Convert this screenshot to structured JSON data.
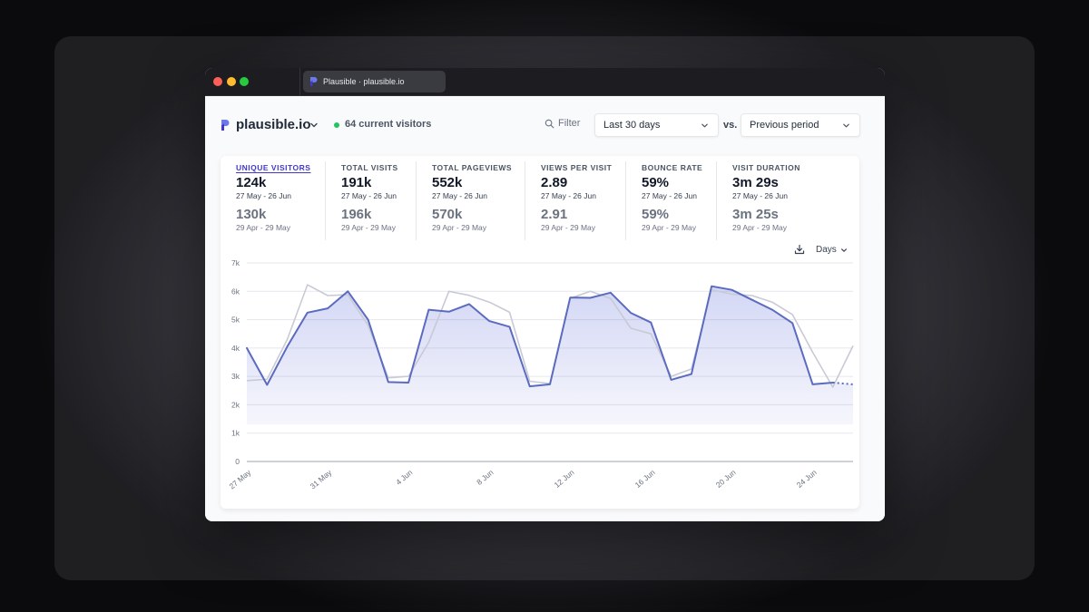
{
  "tab": {
    "title": "Plausible · plausible.io"
  },
  "header": {
    "site_name": "plausible.io",
    "current_visitors": "64 current visitors",
    "filter_label": "Filter",
    "period": "Last 30 days",
    "vs_label": "vs.",
    "comparison": "Previous period"
  },
  "metrics": [
    {
      "label": "UNIQUE VISITORS",
      "value": "124k",
      "range": "27 May - 26 Jun",
      "prev_value": "130k",
      "prev_range": "29 Apr - 29 May"
    },
    {
      "label": "TOTAL VISITS",
      "value": "191k",
      "range": "27 May - 26 Jun",
      "prev_value": "196k",
      "prev_range": "29 Apr - 29 May"
    },
    {
      "label": "TOTAL PAGEVIEWS",
      "value": "552k",
      "range": "27 May - 26 Jun",
      "prev_value": "570k",
      "prev_range": "29 Apr - 29 May"
    },
    {
      "label": "VIEWS PER VISIT",
      "value": "2.89",
      "range": "27 May - 26 Jun",
      "prev_value": "2.91",
      "prev_range": "29 Apr - 29 May"
    },
    {
      "label": "BOUNCE RATE",
      "value": "59%",
      "range": "27 May - 26 Jun",
      "prev_value": "59%",
      "prev_range": "29 Apr - 29 May"
    },
    {
      "label": "VISIT DURATION",
      "value": "3m 29s",
      "range": "27 May - 26 Jun",
      "prev_value": "3m 25s",
      "prev_range": "29 Apr - 29 May"
    }
  ],
  "chart_controls": {
    "interval": "Days"
  },
  "colors": {
    "primary": "#5b6bbf",
    "comparison": "#c8cad6",
    "live": "#22c55e",
    "brand": "#5850ec"
  },
  "chart_data": {
    "type": "area",
    "x": [
      "27 May",
      "28 May",
      "29 May",
      "30 May",
      "31 May",
      "1 Jun",
      "2 Jun",
      "3 Jun",
      "4 Jun",
      "5 Jun",
      "6 Jun",
      "7 Jun",
      "8 Jun",
      "9 Jun",
      "10 Jun",
      "11 Jun",
      "12 Jun",
      "13 Jun",
      "14 Jun",
      "15 Jun",
      "16 Jun",
      "17 Jun",
      "18 Jun",
      "19 Jun",
      "20 Jun",
      "21 Jun",
      "22 Jun",
      "23 Jun",
      "24 Jun",
      "25 Jun",
      "26 Jun"
    ],
    "tick_labels": [
      "27 May",
      "31 May",
      "4 Jun",
      "8 Jun",
      "12 Jun",
      "16 Jun",
      "20 Jun",
      "24 Jun"
    ],
    "y_ticks": [
      "0",
      "1k",
      "2k",
      "3k",
      "4k",
      "5k",
      "6k",
      "7k"
    ],
    "ylim": [
      0,
      7000
    ],
    "grid": true,
    "series": [
      {
        "values": [
          4000,
          2700,
          4050,
          5250,
          5400,
          6000,
          5000,
          2800,
          2780,
          5350,
          5280,
          5550,
          4950,
          4750,
          2650,
          2720,
          5780,
          5770,
          5950,
          5240,
          4900,
          2880,
          3080,
          6180,
          6050,
          5700,
          5350,
          4880,
          2720,
          2780,
          2720
        ],
        "incomplete_last": true
      },
      {
        "values": [
          2850,
          2900,
          4300,
          6230,
          5850,
          5880,
          4800,
          2950,
          3000,
          4200,
          6000,
          5860,
          5620,
          5260,
          2830,
          2750,
          5750,
          6000,
          5750,
          4700,
          4500,
          3000,
          3260,
          6050,
          5900,
          5850,
          5620,
          5180,
          3850,
          2620,
          4080
        ]
      }
    ]
  }
}
